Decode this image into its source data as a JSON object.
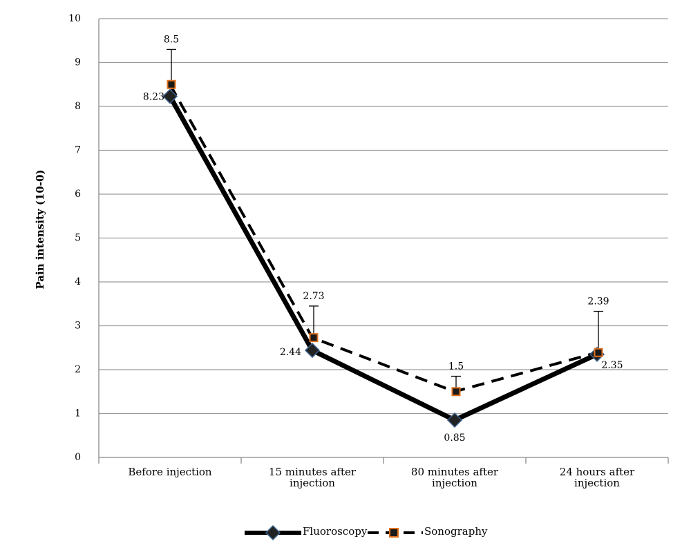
{
  "chart_data": {
    "type": "line",
    "title": "",
    "ylabel": "Pain intensity (10-0)",
    "xlabel": "",
    "categories": [
      "Before injection",
      "15 minutes after injection",
      "80 minutes after injection",
      "24 hours after injection"
    ],
    "category_lines": [
      [
        "Before injection"
      ],
      [
        "15 minutes after",
        "injection"
      ],
      [
        "80 minutes after",
        "injection"
      ],
      [
        "24 hours after",
        "injection"
      ]
    ],
    "ylim": [
      0,
      10
    ],
    "yticks": [
      0,
      1,
      2,
      3,
      4,
      5,
      6,
      7,
      8,
      9,
      10
    ],
    "grid": true,
    "legend_position": "bottom",
    "series": [
      {
        "name": "Fluoroscopy",
        "values": [
          8.23,
          2.44,
          0.85,
          2.35
        ],
        "labels": [
          "8.23",
          "2.44",
          "0.85",
          "2.35"
        ],
        "style": "solid",
        "marker": "diamond",
        "color": "#000000",
        "marker_fill": "#222222",
        "marker_edge": "#3a5f8a"
      },
      {
        "name": "Sonography",
        "values": [
          8.5,
          2.73,
          1.5,
          2.39
        ],
        "labels": [
          "8.5",
          "2.73",
          "1.5",
          "2.39"
        ],
        "style": "dashed",
        "marker": "square",
        "color": "#000000",
        "marker_fill": "#1a1a1a",
        "marker_edge": "#e0701c",
        "error_upper": [
          9.3,
          3.45,
          1.85,
          3.33
        ]
      }
    ]
  }
}
